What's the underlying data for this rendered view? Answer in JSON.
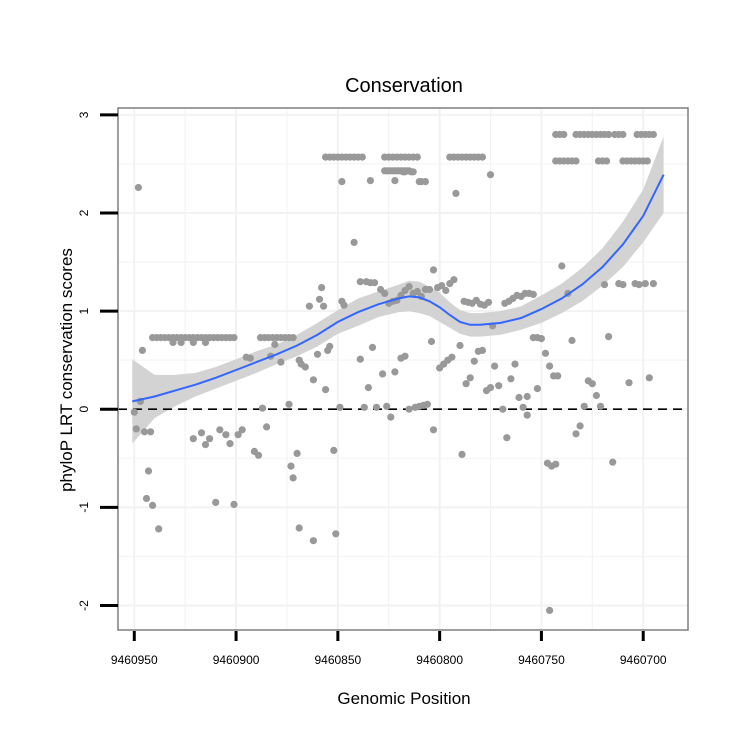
{
  "chart_data": {
    "type": "scatter",
    "title": "Conservation",
    "xlabel": "Genomic Position",
    "ylabel": "phyloP LRT conservation scores",
    "x_reversed": true,
    "xlim": [
      9460958,
      9460678
    ],
    "ylim": [
      -2.25,
      3.07
    ],
    "x_ticks": [
      9460950,
      9460900,
      9460850,
      9460800,
      9460750,
      9460700
    ],
    "x_tick_labels": [
      "9460950",
      "9460900",
      "9460850",
      "9460800",
      "9460750",
      "9460700"
    ],
    "y_ticks": [
      -2,
      -1,
      0,
      1,
      2,
      3
    ],
    "y_tick_labels": [
      "-2",
      "-1",
      "0",
      "1",
      "2",
      "3"
    ],
    "grid": true,
    "reference_line": {
      "y": 0,
      "style": "dashed",
      "color": "#000000"
    },
    "colors": {
      "points": "#999999",
      "smooth": "#3366FF",
      "ribbon": "#D3D3D3",
      "frame": "#7F7F7F"
    },
    "points": [
      [
        9460948,
        2.26
      ],
      [
        9460950,
        -0.03
      ],
      [
        9460949,
        -0.2
      ],
      [
        9460947,
        0.08
      ],
      [
        9460946,
        0.6
      ],
      [
        9460945,
        -0.23
      ],
      [
        9460942,
        -0.23
      ],
      [
        9460944,
        -0.91
      ],
      [
        9460943,
        -0.63
      ],
      [
        9460941,
        -0.98
      ],
      [
        9460938,
        -1.22
      ],
      [
        9460941,
        0.73
      ],
      [
        9460939,
        0.73
      ],
      [
        9460937,
        0.73
      ],
      [
        9460935,
        0.73
      ],
      [
        9460933,
        0.73
      ],
      [
        9460931,
        0.73
      ],
      [
        9460929,
        0.73
      ],
      [
        9460927,
        0.73
      ],
      [
        9460925,
        0.73
      ],
      [
        9460923,
        0.73
      ],
      [
        9460921,
        0.73
      ],
      [
        9460919,
        0.73
      ],
      [
        9460917,
        0.73
      ],
      [
        9460915,
        0.73
      ],
      [
        9460913,
        0.73
      ],
      [
        9460911,
        0.73
      ],
      [
        9460909,
        0.73
      ],
      [
        9460907,
        0.73
      ],
      [
        9460905,
        0.73
      ],
      [
        9460903,
        0.73
      ],
      [
        9460901,
        0.73
      ],
      [
        9460931,
        0.68
      ],
      [
        9460927,
        0.68
      ],
      [
        9460921,
        0.68
      ],
      [
        9460915,
        0.68
      ],
      [
        9460921,
        -0.3
      ],
      [
        9460917,
        -0.24
      ],
      [
        9460915,
        -0.36
      ],
      [
        9460913,
        -0.3
      ],
      [
        9460910,
        -0.95
      ],
      [
        9460908,
        -0.21
      ],
      [
        9460905,
        -0.26
      ],
      [
        9460903,
        -0.35
      ],
      [
        9460901,
        -0.97
      ],
      [
        9460899,
        -0.26
      ],
      [
        9460897,
        -0.21
      ],
      [
        9460895,
        0.53
      ],
      [
        9460893,
        0.52
      ],
      [
        9460891,
        -0.43
      ],
      [
        9460889,
        -0.47
      ],
      [
        9460887,
        0.01
      ],
      [
        9460885,
        -0.18
      ],
      [
        9460883,
        0.54
      ],
      [
        9460881,
        0.66
      ],
      [
        9460888,
        0.73
      ],
      [
        9460886,
        0.73
      ],
      [
        9460884,
        0.73
      ],
      [
        9460882,
        0.73
      ],
      [
        9460880,
        0.73
      ],
      [
        9460878,
        0.73
      ],
      [
        9460876,
        0.73
      ],
      [
        9460874,
        0.73
      ],
      [
        9460872,
        0.73
      ],
      [
        9460878,
        0.48
      ],
      [
        9460874,
        0.05
      ],
      [
        9460873,
        -0.58
      ],
      [
        9460872,
        -0.7
      ],
      [
        9460870,
        -0.45
      ],
      [
        9460869,
        0.5
      ],
      [
        9460868,
        0.46
      ],
      [
        9460866,
        0.43
      ],
      [
        9460864,
        1.05
      ],
      [
        9460862,
        0.3
      ],
      [
        9460860,
        0.56
      ],
      [
        9460859,
        1.12
      ],
      [
        9460858,
        1.24
      ],
      [
        9460857,
        1.05
      ],
      [
        9460856,
        0.2
      ],
      [
        9460855,
        0.6
      ],
      [
        9460854,
        0.64
      ],
      [
        9460852,
        -0.42
      ],
      [
        9460851,
        -1.27
      ],
      [
        9460849,
        0.02
      ],
      [
        9460848,
        1.1
      ],
      [
        9460847,
        1.06
      ],
      [
        9460869,
        -1.21
      ],
      [
        9460862,
        -1.34
      ],
      [
        9460856,
        2.57
      ],
      [
        9460854,
        2.57
      ],
      [
        9460852,
        2.57
      ],
      [
        9460850,
        2.57
      ],
      [
        9460848,
        2.57
      ],
      [
        9460846,
        2.57
      ],
      [
        9460844,
        2.57
      ],
      [
        9460842,
        2.57
      ],
      [
        9460840,
        2.57
      ],
      [
        9460838,
        2.57
      ],
      [
        9460827,
        2.57
      ],
      [
        9460825,
        2.57
      ],
      [
        9460823,
        2.57
      ],
      [
        9460821,
        2.57
      ],
      [
        9460819,
        2.57
      ],
      [
        9460817,
        2.57
      ],
      [
        9460815,
        2.57
      ],
      [
        9460813,
        2.57
      ],
      [
        9460811,
        2.57
      ],
      [
        9460795,
        2.57
      ],
      [
        9460793,
        2.57
      ],
      [
        9460791,
        2.57
      ],
      [
        9460789,
        2.57
      ],
      [
        9460787,
        2.57
      ],
      [
        9460785,
        2.57
      ],
      [
        9460783,
        2.57
      ],
      [
        9460781,
        2.57
      ],
      [
        9460779,
        2.57
      ],
      [
        9460848,
        2.32
      ],
      [
        9460834,
        2.33
      ],
      [
        9460809,
        2.32
      ],
      [
        9460792,
        2.2
      ],
      [
        9460822,
        2.33
      ],
      [
        9460818,
        2.42
      ],
      [
        9460817,
        2.42
      ],
      [
        9460814,
        2.42
      ],
      [
        9460813,
        2.42
      ],
      [
        9460810,
        2.32
      ],
      [
        9460807,
        2.32
      ],
      [
        9460775,
        2.39
      ],
      [
        9460827,
        2.43
      ],
      [
        9460826,
        2.43
      ],
      [
        9460825,
        2.43
      ],
      [
        9460824,
        2.43
      ],
      [
        9460823,
        2.43
      ],
      [
        9460822,
        2.43
      ],
      [
        9460821,
        2.43
      ],
      [
        9460820,
        2.43
      ],
      [
        9460819,
        2.43
      ],
      [
        9460818,
        2.43
      ],
      [
        9460817,
        2.43
      ],
      [
        9460816,
        2.43
      ],
      [
        9460815,
        2.43
      ],
      [
        9460842,
        1.7
      ],
      [
        9460839,
        1.3
      ],
      [
        9460836,
        1.3
      ],
      [
        9460834,
        1.29
      ],
      [
        9460832,
        1.29
      ],
      [
        9460829,
        1.22
      ],
      [
        9460827,
        1.18
      ],
      [
        9460825,
        1.08
      ],
      [
        9460823,
        1.1
      ],
      [
        9460821,
        1.11
      ],
      [
        9460819,
        1.16
      ],
      [
        9460817,
        1.21
      ],
      [
        9460815,
        1.25
      ],
      [
        9460813,
        1.18
      ],
      [
        9460811,
        1.2
      ],
      [
        9460809,
        1.15
      ],
      [
        9460807,
        1.22
      ],
      [
        9460805,
        1.22
      ],
      [
        9460803,
        1.42
      ],
      [
        9460801,
        1.24
      ],
      [
        9460799,
        1.26
      ],
      [
        9460797,
        1.21
      ],
      [
        9460795,
        1.28
      ],
      [
        9460793,
        1.32
      ],
      [
        9460788,
        1.1
      ],
      [
        9460786,
        1.09
      ],
      [
        9460784,
        1.08
      ],
      [
        9460782,
        1.11
      ],
      [
        9460780,
        1.07
      ],
      [
        9460778,
        1.06
      ],
      [
        9460776,
        1.09
      ],
      [
        9460774,
        0.85
      ],
      [
        9460768,
        1.08
      ],
      [
        9460766,
        1.1
      ],
      [
        9460764,
        1.13
      ],
      [
        9460762,
        1.16
      ],
      [
        9460760,
        1.15
      ],
      [
        9460758,
        1.18
      ],
      [
        9460756,
        1.18
      ],
      [
        9460754,
        1.17
      ],
      [
        9460839,
        0.51
      ],
      [
        9460837,
        0.02
      ],
      [
        9460835,
        0.22
      ],
      [
        9460833,
        0.63
      ],
      [
        9460831,
        0.02
      ],
      [
        9460828,
        0.36
      ],
      [
        9460826,
        0.03
      ],
      [
        9460824,
        -0.08
      ],
      [
        9460822,
        0.38
      ],
      [
        9460819,
        0.52
      ],
      [
        9460817,
        0.54
      ],
      [
        9460815,
        0.0
      ],
      [
        9460812,
        0.02
      ],
      [
        9460810,
        0.03
      ],
      [
        9460808,
        0.04
      ],
      [
        9460806,
        0.05
      ],
      [
        9460804,
        0.69
      ],
      [
        9460803,
        -0.21
      ],
      [
        9460800,
        0.42
      ],
      [
        9460798,
        0.46
      ],
      [
        9460796,
        0.5
      ],
      [
        9460794,
        0.53
      ],
      [
        9460790,
        0.65
      ],
      [
        9460789,
        -0.46
      ],
      [
        9460787,
        0.26
      ],
      [
        9460785,
        0.32
      ],
      [
        9460783,
        0.49
      ],
      [
        9460781,
        0.59
      ],
      [
        9460779,
        0.6
      ],
      [
        9460777,
        0.19
      ],
      [
        9460775,
        0.22
      ],
      [
        9460773,
        0.44
      ],
      [
        9460771,
        0.24
      ],
      [
        9460769,
        0.0
      ],
      [
        9460767,
        -0.29
      ],
      [
        9460765,
        0.31
      ],
      [
        9460763,
        0.46
      ],
      [
        9460761,
        0.12
      ],
      [
        9460759,
        0.02
      ],
      [
        9460757,
        0.13
      ],
      [
        9460754,
        0.73
      ],
      [
        9460752,
        0.73
      ],
      [
        9460750,
        0.72
      ],
      [
        9460748,
        0.57
      ],
      [
        9460746,
        0.44
      ],
      [
        9460744,
        0.34
      ],
      [
        9460742,
        0.34
      ],
      [
        9460740,
        1.46
      ],
      [
        9460737,
        1.18
      ],
      [
        9460735,
        0.7
      ],
      [
        9460733,
        -0.25
      ],
      [
        9460731,
        -0.17
      ],
      [
        9460729,
        0.03
      ],
      [
        9460727,
        0.29
      ],
      [
        9460725,
        0.26
      ],
      [
        9460723,
        0.14
      ],
      [
        9460721,
        0.03
      ],
      [
        9460719,
        1.27
      ],
      [
        9460717,
        0.74
      ],
      [
        9460715,
        -0.54
      ],
      [
        9460712,
        1.28
      ],
      [
        9460710,
        1.27
      ],
      [
        9460707,
        0.27
      ],
      [
        9460704,
        1.28
      ],
      [
        9460702,
        1.27
      ],
      [
        9460699,
        1.28
      ],
      [
        9460697,
        0.32
      ],
      [
        9460695,
        1.28
      ],
      [
        9460747,
        -0.55
      ],
      [
        9460745,
        -0.58
      ],
      [
        9460743,
        -0.56
      ],
      [
        9460746,
        -2.05
      ],
      [
        9460757,
        -0.06
      ],
      [
        9460752,
        0.21
      ],
      [
        9460743,
        2.53
      ],
      [
        9460741,
        2.53
      ],
      [
        9460739,
        2.53
      ],
      [
        9460737,
        2.53
      ],
      [
        9460735,
        2.53
      ],
      [
        9460733,
        2.53
      ],
      [
        9460722,
        2.53
      ],
      [
        9460720,
        2.53
      ],
      [
        9460718,
        2.53
      ],
      [
        9460710,
        2.53
      ],
      [
        9460708,
        2.53
      ],
      [
        9460706,
        2.53
      ],
      [
        9460704,
        2.53
      ],
      [
        9460702,
        2.53
      ],
      [
        9460700,
        2.53
      ],
      [
        9460698,
        2.53
      ],
      [
        9460743,
        2.8
      ],
      [
        9460741,
        2.8
      ],
      [
        9460739,
        2.8
      ],
      [
        9460733,
        2.8
      ],
      [
        9460731,
        2.8
      ],
      [
        9460729,
        2.8
      ],
      [
        9460727,
        2.8
      ],
      [
        9460725,
        2.8
      ],
      [
        9460723,
        2.8
      ],
      [
        9460721,
        2.8
      ],
      [
        9460719,
        2.8
      ],
      [
        9460717,
        2.8
      ],
      [
        9460714,
        2.8
      ],
      [
        9460712,
        2.8
      ],
      [
        9460710,
        2.8
      ],
      [
        9460703,
        2.8
      ],
      [
        9460701,
        2.8
      ],
      [
        9460699,
        2.8
      ],
      [
        9460697,
        2.8
      ],
      [
        9460695,
        2.8
      ]
    ],
    "smooth": {
      "x": [
        9460951,
        9460940,
        9460930,
        9460920,
        9460910,
        9460900,
        9460890,
        9460880,
        9460870,
        9460860,
        9460850,
        9460840,
        9460830,
        9460820,
        9460815,
        9460810,
        9460805,
        9460800,
        9460795,
        9460790,
        9460785,
        9460780,
        9460770,
        9460760,
        9460750,
        9460740,
        9460730,
        9460720,
        9460710,
        9460700,
        9460690
      ],
      "y": [
        0.08,
        0.13,
        0.19,
        0.25,
        0.32,
        0.4,
        0.48,
        0.56,
        0.65,
        0.76,
        0.89,
        0.99,
        1.07,
        1.13,
        1.15,
        1.14,
        1.1,
        1.04,
        0.96,
        0.89,
        0.86,
        0.86,
        0.88,
        0.93,
        1.02,
        1.13,
        1.27,
        1.45,
        1.68,
        1.97,
        2.39
      ],
      "lower": [
        -0.35,
        -0.09,
        0.03,
        0.13,
        0.21,
        0.29,
        0.37,
        0.46,
        0.54,
        0.64,
        0.77,
        0.85,
        0.94,
        0.99,
        1.0,
        0.98,
        0.95,
        0.89,
        0.83,
        0.77,
        0.74,
        0.74,
        0.76,
        0.81,
        0.88,
        0.98,
        1.1,
        1.26,
        1.45,
        1.7,
        2.0
      ],
      "upper": [
        0.51,
        0.35,
        0.35,
        0.37,
        0.43,
        0.51,
        0.59,
        0.66,
        0.76,
        0.88,
        1.01,
        1.13,
        1.2,
        1.27,
        1.31,
        1.3,
        1.25,
        1.19,
        1.09,
        1.01,
        0.98,
        0.98,
        1.0,
        1.05,
        1.16,
        1.28,
        1.44,
        1.64,
        1.91,
        2.24,
        2.78
      ]
    }
  }
}
